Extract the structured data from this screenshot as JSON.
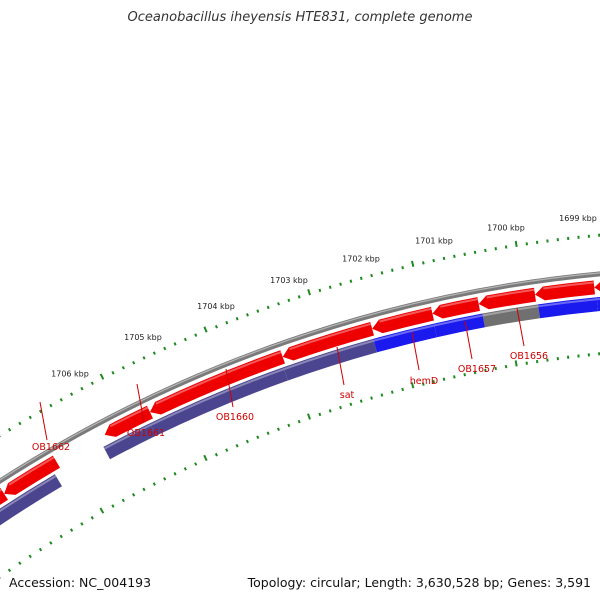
{
  "title": "Oceanobacillus iheyensis HTE831, complete genome",
  "footer": {
    "accession": "Accession: NC_004193",
    "info": "Topology: circular; Length: 3,630,528 bp; Genes: 3,591"
  },
  "colors": {
    "forward_arrow": "#ee0000",
    "blue_gene": "#1a1aee",
    "purple_gene": "#4b4590",
    "grey_gene": "#707070",
    "backbone": "#7a7a7a",
    "tick": "#1f8a1f",
    "label": "#cc0000"
  },
  "scale_labels": [
    "1706 kbp",
    "1705 kbp",
    "1704 kbp",
    "1703 kbp",
    "1702 kbp",
    "1701 kbp",
    "1700 kbp",
    "1699 kbp"
  ],
  "gene_labels": [
    "OB1662",
    "OB1661",
    "OB1660",
    "sat",
    "hemD",
    "OB1657",
    "OB1656"
  ]
}
